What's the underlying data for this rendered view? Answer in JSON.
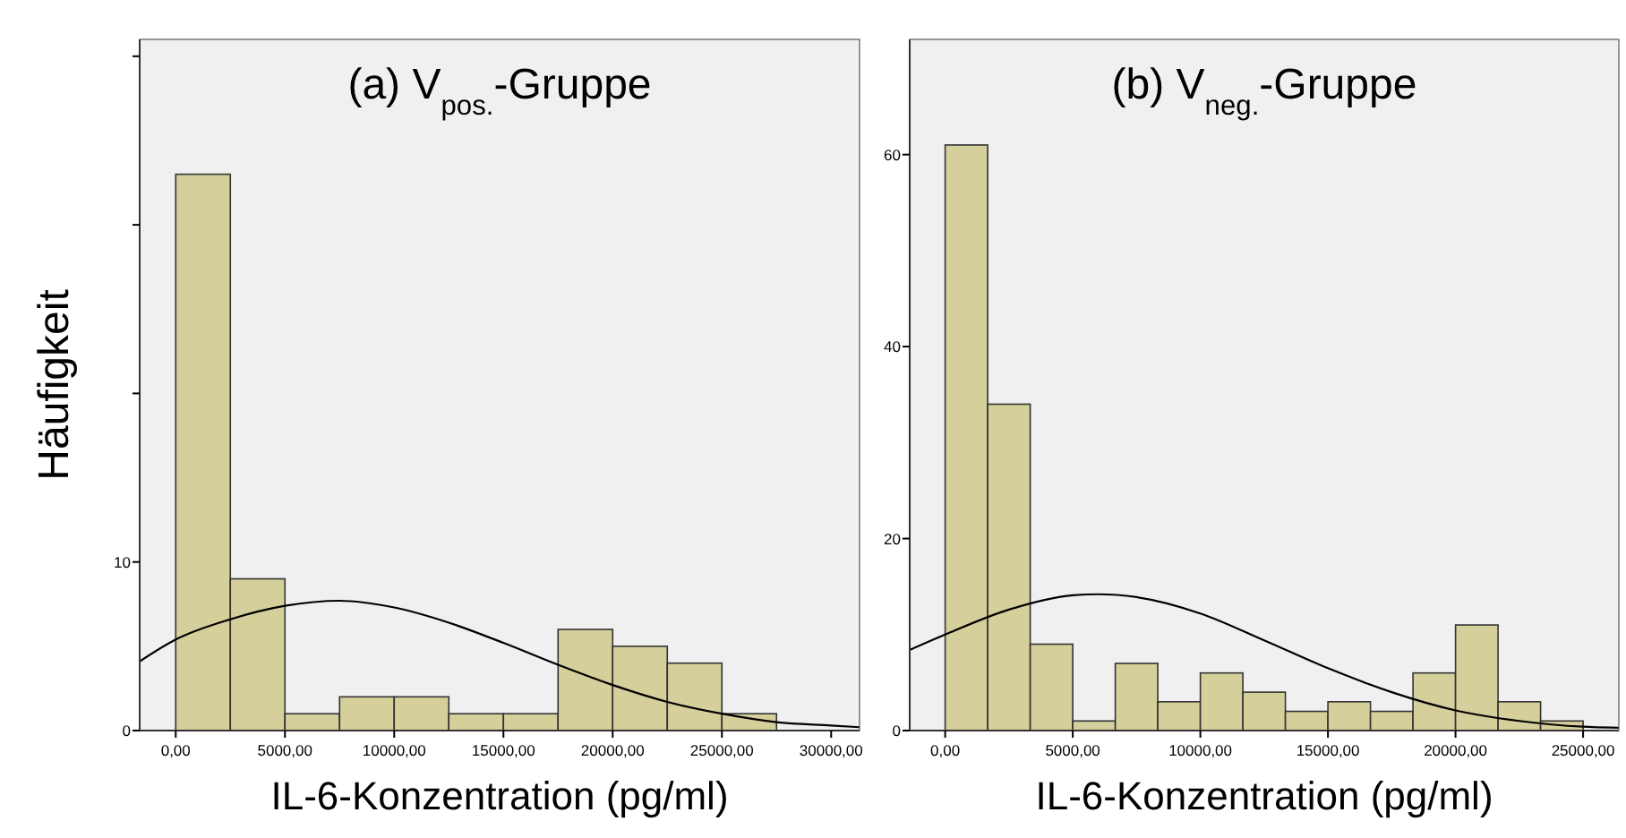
{
  "chart_data": [
    {
      "type": "histogram",
      "title": "(a) V$_{pos.}$-Gruppe",
      "xlabel": "IL-6-Konzentration (pg/ml)",
      "ylabel": "Häufigkeit",
      "xlim": [
        -1650,
        31300
      ],
      "ylim": [
        0,
        41
      ],
      "xticks": [
        {
          "value": 0,
          "label": "0,00"
        },
        {
          "value": 5000,
          "label": "5000,00"
        },
        {
          "value": 10000,
          "label": "10000,00"
        },
        {
          "value": 15000,
          "label": "15000,00"
        },
        {
          "value": 20000,
          "label": "20000,00"
        },
        {
          "value": 25000,
          "label": "25000,00"
        },
        {
          "value": 30000,
          "label": "30000,00"
        }
      ],
      "yticks": [
        0,
        10,
        {
          "value": 20,
          "label": null
        },
        {
          "value": 30,
          "label": null
        },
        {
          "value": 40,
          "label": null
        }
      ],
      "series": [
        {
          "color": "#d4cf9b",
          "bins": [
            0,
            2500,
            5000,
            7500,
            10000,
            12500,
            15000,
            17500,
            20000,
            22500,
            25000,
            27500
          ],
          "values": [
            33,
            9,
            1,
            2,
            2,
            1,
            1,
            6,
            5,
            4,
            1
          ]
        },
        {
          "type": "line",
          "color": "#000000",
          "x": [
            -1650,
            0,
            2500,
            5000,
            7500,
            10000,
            12500,
            15000,
            17500,
            20000,
            22500,
            25000,
            27500,
            30000,
            31300
          ],
          "values": [
            4.1,
            5.4,
            6.6,
            7.4,
            7.7,
            7.3,
            6.4,
            5.2,
            3.9,
            2.7,
            1.7,
            1.0,
            0.5,
            0.3,
            0.2
          ]
        }
      ]
    },
    {
      "type": "histogram",
      "title": "(b) V$_{neg.}$-Gruppe",
      "xlabel": "IL-6-Konzentration (pg/ml)",
      "xlim": [
        -1390,
        26400
      ],
      "ylim": [
        0,
        72
      ],
      "xticks": [
        {
          "value": 0,
          "label": "0,00"
        },
        {
          "value": 5000,
          "label": "5000,00"
        },
        {
          "value": 10000,
          "label": "10000,00"
        },
        {
          "value": 15000,
          "label": "15000,00"
        },
        {
          "value": 20000,
          "label": "20000,00"
        },
        {
          "value": 25000,
          "label": "25000,00"
        }
      ],
      "yticks": [
        0,
        20,
        40,
        60
      ],
      "series": [
        {
          "color": "#d4cf9b",
          "bins": [
            0,
            1667,
            3333,
            5000,
            6667,
            8333,
            10000,
            11667,
            13333,
            15000,
            16667,
            18333,
            20000,
            21667,
            23333,
            25000
          ],
          "values": [
            61,
            34,
            9,
            1,
            7,
            3,
            6,
            4,
            2,
            3,
            2,
            6,
            11,
            3,
            1
          ]
        },
        {
          "type": "line",
          "color": "#000000",
          "x": [
            -1390,
            0,
            2500,
            5000,
            6000,
            7500,
            10000,
            12500,
            15000,
            17500,
            20000,
            22500,
            25000,
            26400
          ],
          "values": [
            8.4,
            10.0,
            12.6,
            14.1,
            14.2,
            13.9,
            12.2,
            9.4,
            6.5,
            4.0,
            2.1,
            1.0,
            0.4,
            0.3
          ]
        }
      ]
    }
  ]
}
